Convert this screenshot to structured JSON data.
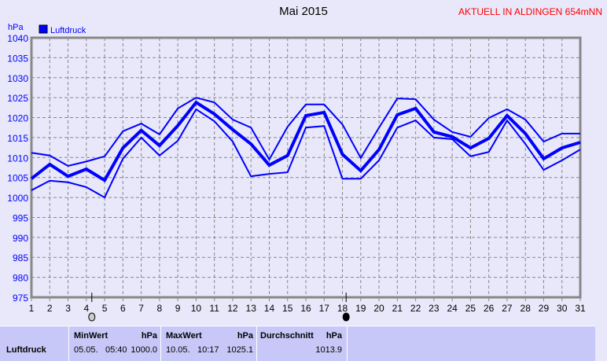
{
  "header": {
    "title": "Mai 2015",
    "station": "AKTUELL IN ALDINGEN 654mNN"
  },
  "chart_data": {
    "type": "line",
    "title": "Mai 2015",
    "ylabel": "hPa",
    "xlabel": "",
    "ylim": [
      975,
      1040
    ],
    "yticks": [
      975,
      980,
      985,
      990,
      995,
      1000,
      1005,
      1010,
      1015,
      1020,
      1025,
      1030,
      1035,
      1040
    ],
    "x": [
      1,
      2,
      3,
      4,
      5,
      6,
      7,
      8,
      9,
      10,
      11,
      12,
      13,
      14,
      15,
      16,
      17,
      18,
      19,
      20,
      21,
      22,
      23,
      24,
      25,
      26,
      27,
      28,
      29,
      30,
      31
    ],
    "grid": true,
    "legend": "top-left",
    "legend_label": "Luftdruck",
    "color": "#0000ff",
    "series": [
      {
        "values": [
          1011.2,
          1010.5,
          1007.9,
          1009.0,
          1010.3,
          1016.6,
          1018.5,
          1015.8,
          1022.3,
          1025.0,
          1023.8,
          1019.5,
          1017.5,
          1009.5,
          1017.7,
          1023.3,
          1023.3,
          1018.3,
          1009.9,
          1017.5,
          1024.8,
          1024.6,
          1019.5,
          1016.4,
          1015.2,
          1019.9,
          1022.1,
          1019.5,
          1014.0,
          1016.0,
          1016.0
        ]
      },
      {
        "values": [
          1004.7,
          1008.3,
          1005.3,
          1007.1,
          1004.3,
          1012.4,
          1016.8,
          1013.0,
          1018.0,
          1023.8,
          1020.9,
          1017.0,
          1013.4,
          1008.1,
          1010.5,
          1020.5,
          1021.3,
          1010.8,
          1006.7,
          1012.0,
          1020.7,
          1022.3,
          1016.4,
          1015.2,
          1012.4,
          1014.8,
          1020.5,
          1016.0,
          1009.7,
          1012.4,
          1013.8
        ]
      },
      {
        "values": [
          1001.8,
          1004.2,
          1003.8,
          1002.6,
          1000.0,
          1009.7,
          1015.0,
          1010.5,
          1014.2,
          1022.1,
          1019.1,
          1014.0,
          1005.3,
          1005.9,
          1006.3,
          1017.5,
          1017.9,
          1004.7,
          1004.7,
          1009.3,
          1017.5,
          1019.3,
          1015.0,
          1014.6,
          1010.3,
          1011.4,
          1019.3,
          1013.4,
          1006.9,
          1009.3,
          1012.0
        ]
      }
    ],
    "moon_phases": [
      {
        "day": 4.3,
        "phase": "full-moon-icon"
      },
      {
        "day": 18.2,
        "phase": "new-moon-icon"
      }
    ]
  },
  "table": {
    "row_label": "Luftdruck",
    "min": {
      "header": "MinWert",
      "unit": "hPa",
      "date": "05.05.",
      "time": "05:40",
      "value": "1000.0"
    },
    "max": {
      "header": "MaxWert",
      "unit": "hPa",
      "date": "10.05.",
      "time": "10:17",
      "value": "1025.1"
    },
    "avg": {
      "header": "Durchschnitt",
      "unit": "hPa",
      "value": "1013.9"
    }
  }
}
